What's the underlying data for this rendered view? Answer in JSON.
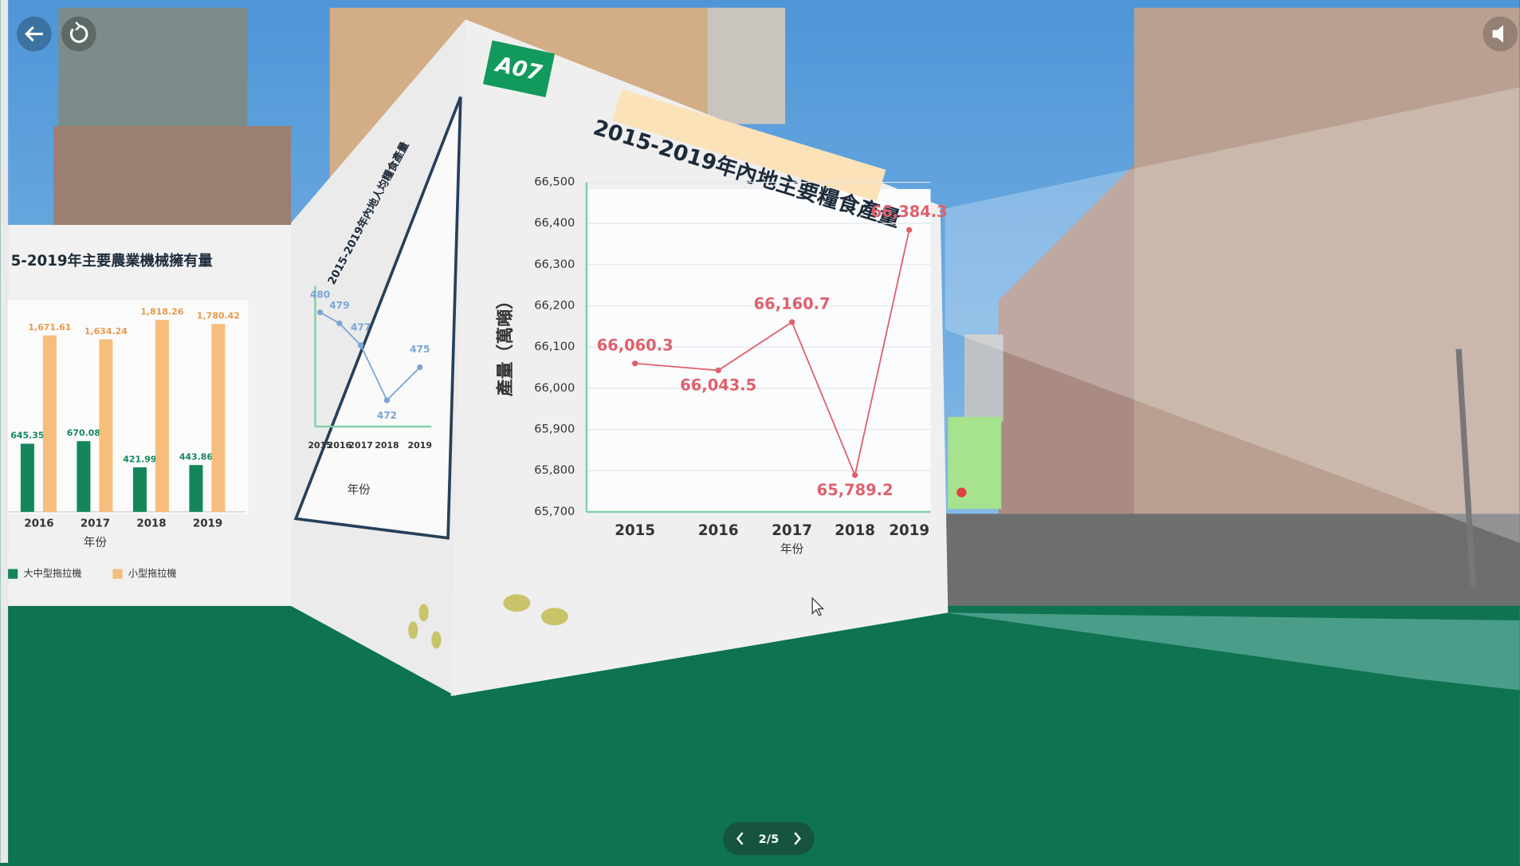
{
  "badge": "A07",
  "pager": "2/5",
  "chart_data": [
    {
      "type": "line",
      "title": "2015-2019年內地主要糧食產量",
      "y_label": "產量（萬噸）",
      "x_label": "年份",
      "categories": [
        "2015",
        "2016",
        "2017",
        "2018",
        "2019"
      ],
      "values": [
        66060.3,
        66043.5,
        66160.7,
        65789.2,
        66384.3
      ],
      "value_labels": [
        "66,060.3",
        "66,043.5",
        "66,160.7",
        "65,789.2",
        "66,384.3"
      ],
      "color": "#e0606c",
      "ylim": [
        65700,
        66500
      ],
      "yticks": [
        {
          "value": 65700,
          "label": "65,700"
        },
        {
          "value": 65800,
          "label": "65,800"
        },
        {
          "value": 65900,
          "label": "65,900"
        },
        {
          "value": 66000,
          "label": "66,000"
        },
        {
          "value": 66100,
          "label": "66,100"
        },
        {
          "value": 66200,
          "label": "66,200"
        },
        {
          "value": 66300,
          "label": "66,300"
        },
        {
          "value": 66400,
          "label": "66,400"
        },
        {
          "value": 66500,
          "label": "66,500"
        }
      ],
      "grid": true
    },
    {
      "type": "bar",
      "title": "5-2019年主要農業機械擁有量",
      "x_label": "年份",
      "categories": [
        "2016",
        "2017",
        "2018",
        "2019"
      ],
      "series": [
        {
          "name": "大中型拖拉機",
          "color": "#14875a",
          "values": [
            645.35,
            670.08,
            421.99,
            443.86
          ]
        },
        {
          "name": "小型拖拉機",
          "color": "#f6bd7d",
          "values": [
            1671.61,
            1634.24,
            1818.26,
            1780.42
          ],
          "value_labels": [
            "1,671.61",
            "1,634.24",
            "1,818.26",
            "1,780.42"
          ]
        }
      ]
    },
    {
      "type": "line",
      "title": "2015-2019年內地人均糧食產量",
      "x_label": "年份",
      "categories": [
        "2015",
        "2016",
        "2017",
        "2018",
        "2019"
      ],
      "values": [
        480,
        479,
        477,
        472,
        475
      ],
      "color": "#7aa6d6"
    }
  ]
}
